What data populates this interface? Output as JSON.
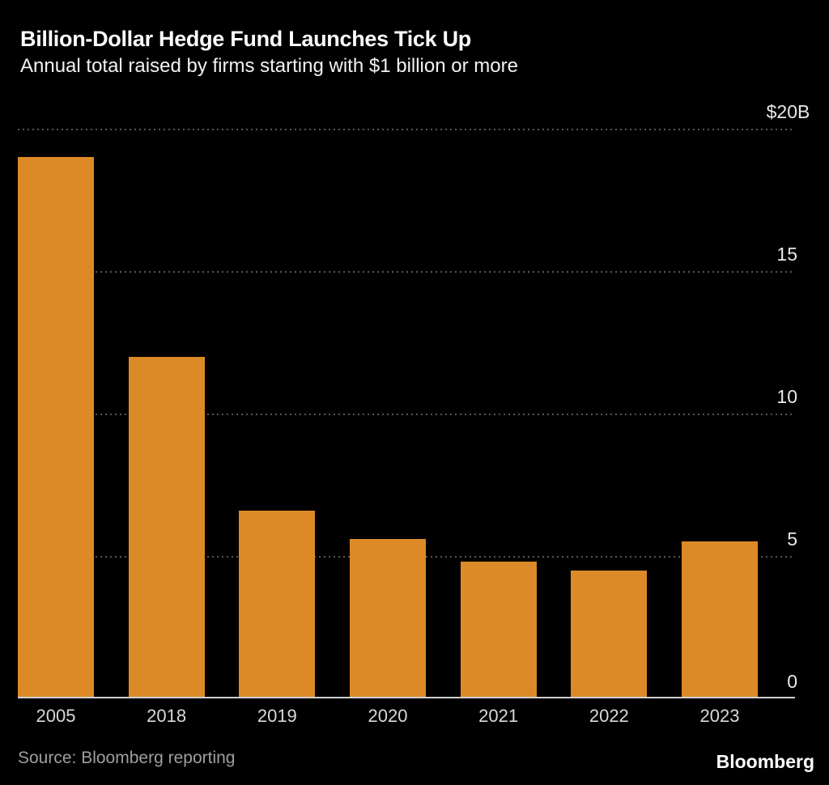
{
  "header": {
    "title": "Billion-Dollar Hedge Fund Launches Tick Up",
    "subtitle": "Annual total raised by firms starting with $1 billion or more"
  },
  "footer": {
    "source": "Source: Bloomberg reporting",
    "logo": "Bloomberg"
  },
  "colors": {
    "background": "#000000",
    "bar": "#DC8A28",
    "gridline": "#575757",
    "axis_line": "#CFCFCF",
    "title": "#FFFFFF",
    "subtitle": "#F2F2F2",
    "tick_label": "#E8E8E8",
    "x_label": "#D9D9D9",
    "source": "#9E9E9E",
    "logo": "#FFFFFF"
  },
  "chart_data": {
    "type": "bar",
    "title": "Billion-Dollar Hedge Fund Launches Tick Up",
    "subtitle": "Annual total raised by firms starting with $1 billion or more",
    "categories": [
      "2005",
      "2018",
      "2019",
      "2020",
      "2021",
      "2022",
      "2023"
    ],
    "values": [
      19,
      12,
      6.6,
      5.6,
      4.8,
      4.5,
      5.5
    ],
    "unit": "$B",
    "ylim": [
      0,
      20
    ],
    "yticks": [
      {
        "label": "$20B",
        "value": 20
      },
      {
        "label": "15",
        "value": 15
      },
      {
        "label": "10",
        "value": 10
      },
      {
        "label": "5",
        "value": 5
      },
      {
        "label": "0",
        "value": 0
      }
    ],
    "grid": "horizontal-dotted",
    "gridline_values": [
      20,
      15,
      10,
      5
    ],
    "legend": "none",
    "source": "Source: Bloomberg reporting"
  }
}
